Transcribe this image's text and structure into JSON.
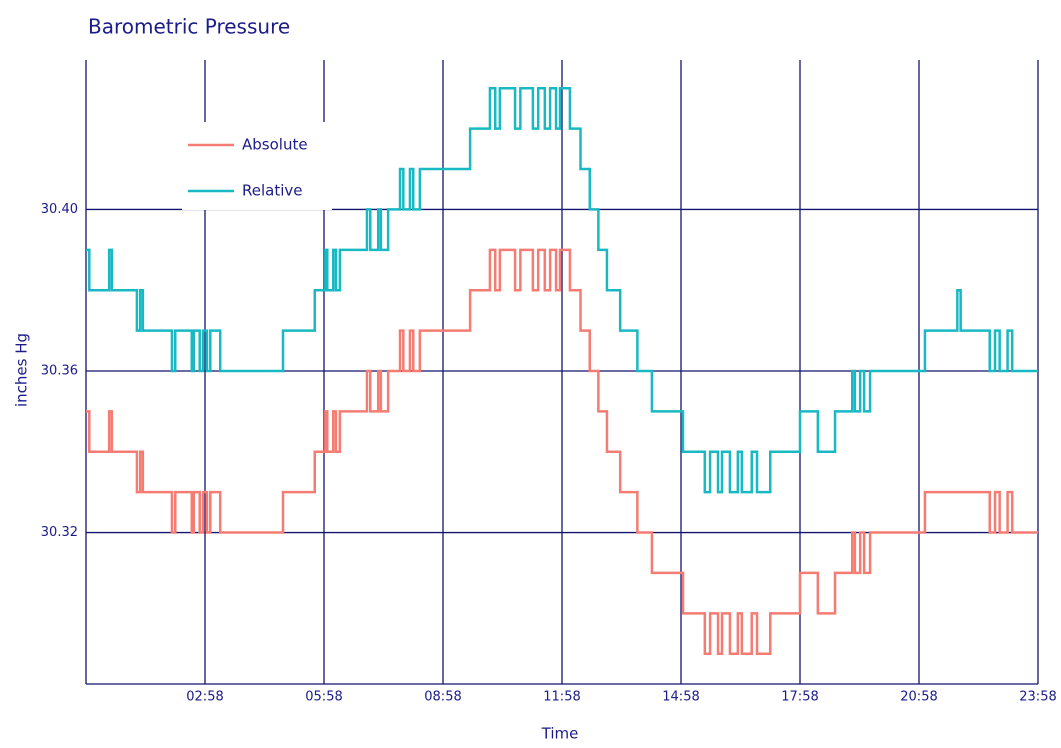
{
  "chart_data": {
    "type": "line",
    "title": "Barometric Pressure",
    "x_label": "Time",
    "y_label": "inches Hg",
    "step": "post",
    "grid": true,
    "legend": "upper left",
    "xlim": [
      -2,
      1438
    ],
    "xticks": [
      {
        "value": 178,
        "label": "02:58"
      },
      {
        "value": 358,
        "label": "05:58"
      },
      {
        "value": 538,
        "label": "08:58"
      },
      {
        "value": 718,
        "label": "11:58"
      },
      {
        "value": 898,
        "label": "14:58"
      },
      {
        "value": 1078,
        "label": "17:58"
      },
      {
        "value": 1258,
        "label": "20:58"
      },
      {
        "value": 1438,
        "label": "23:58"
      }
    ],
    "ylim": [
      30.2825,
      30.437
    ],
    "yticks": [
      {
        "value": 30.32,
        "label": "30.32"
      },
      {
        "value": 30.36,
        "label": "30.36"
      },
      {
        "value": 30.4,
        "label": "30.40"
      }
    ],
    "series": [
      {
        "name": "Absolute",
        "color": "#f47c73",
        "x": [
          -2,
          3,
          33,
          37,
          75,
          80,
          84,
          128,
          133,
          158,
          161,
          170,
          175,
          181,
          186,
          201,
          296,
          344,
          360,
          363,
          372,
          376,
          382,
          423,
          428,
          440,
          444,
          455,
          473,
          478,
          488,
          493,
          503,
          579,
          609,
          617,
          624,
          647,
          655,
          674,
          682,
          692,
          700,
          709,
          715,
          730,
          746,
          760,
          773,
          786,
          806,
          832,
          854,
          901,
          934,
          942,
          954,
          960,
          972,
          984,
          990,
          1005,
          1013,
          1033,
          1078,
          1105,
          1131,
          1157,
          1161,
          1169,
          1175,
          1184,
          1267,
          1365,
          1373,
          1380,
          1392,
          1399,
          1438
        ],
        "values": [
          30.35,
          30.34,
          30.35,
          30.34,
          30.33,
          30.34,
          30.33,
          30.32,
          30.33,
          30.32,
          30.33,
          30.32,
          30.33,
          30.32,
          30.33,
          30.32,
          30.33,
          30.34,
          30.35,
          30.34,
          30.35,
          30.34,
          30.35,
          30.36,
          30.35,
          30.36,
          30.35,
          30.36,
          30.37,
          30.36,
          30.37,
          30.36,
          30.37,
          30.38,
          30.39,
          30.38,
          30.39,
          30.38,
          30.39,
          30.38,
          30.39,
          30.38,
          30.39,
          30.38,
          30.39,
          30.38,
          30.37,
          30.36,
          30.35,
          30.34,
          30.33,
          30.32,
          30.31,
          30.3,
          30.29,
          30.3,
          30.29,
          30.3,
          30.29,
          30.3,
          30.29,
          30.3,
          30.29,
          30.3,
          30.31,
          30.3,
          30.31,
          30.32,
          30.31,
          30.32,
          30.31,
          30.32,
          30.33,
          30.32,
          30.33,
          30.32,
          30.33,
          30.32,
          30.32
        ]
      },
      {
        "name": "Relative",
        "color": "#19b9c3",
        "x": [
          -2,
          3,
          33,
          37,
          75,
          80,
          84,
          128,
          133,
          158,
          161,
          170,
          175,
          181,
          186,
          201,
          296,
          344,
          360,
          363,
          372,
          376,
          382,
          423,
          428,
          440,
          444,
          455,
          473,
          478,
          488,
          493,
          503,
          579,
          609,
          617,
          624,
          647,
          655,
          674,
          682,
          692,
          700,
          709,
          715,
          730,
          746,
          760,
          773,
          786,
          806,
          832,
          854,
          901,
          934,
          942,
          954,
          960,
          972,
          984,
          990,
          1005,
          1013,
          1033,
          1078,
          1105,
          1131,
          1157,
          1161,
          1169,
          1175,
          1184,
          1267,
          1316,
          1321,
          1365,
          1373,
          1380,
          1392,
          1399,
          1438
        ],
        "values": [
          30.39,
          30.38,
          30.39,
          30.38,
          30.37,
          30.38,
          30.37,
          30.36,
          30.37,
          30.36,
          30.37,
          30.36,
          30.37,
          30.36,
          30.37,
          30.36,
          30.37,
          30.38,
          30.39,
          30.38,
          30.39,
          30.38,
          30.39,
          30.4,
          30.39,
          30.4,
          30.39,
          30.4,
          30.41,
          30.4,
          30.41,
          30.4,
          30.41,
          30.42,
          30.43,
          30.42,
          30.43,
          30.42,
          30.43,
          30.42,
          30.43,
          30.42,
          30.43,
          30.42,
          30.43,
          30.42,
          30.41,
          30.4,
          30.39,
          30.38,
          30.37,
          30.36,
          30.35,
          30.34,
          30.33,
          30.34,
          30.33,
          30.34,
          30.33,
          30.34,
          30.33,
          30.34,
          30.33,
          30.34,
          30.35,
          30.34,
          30.35,
          30.36,
          30.35,
          30.36,
          30.35,
          30.36,
          30.37,
          30.38,
          30.37,
          30.36,
          30.37,
          30.36,
          30.37,
          30.36,
          30.36
        ]
      }
    ]
  }
}
